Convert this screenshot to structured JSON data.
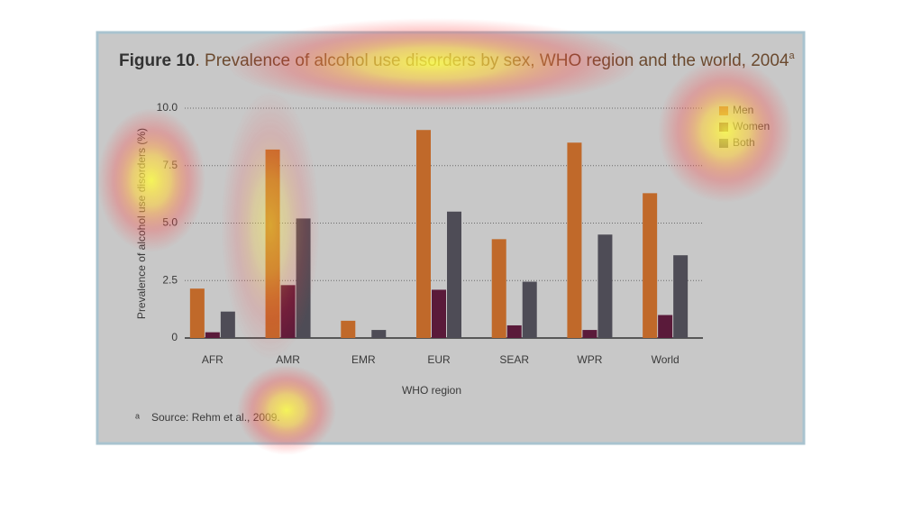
{
  "chart_data": {
    "type": "bar",
    "title_label": "Figure 10",
    "title": ". Prevalence of alcohol use disorders by sex, WHO region and the world, 2004",
    "title_superscript": "a",
    "x_label": "WHO region",
    "y_label": "Prevalence of alcohol use disorders (%)",
    "footnote_marker": "a",
    "footnote": "Source: Rehm et al., 2009.",
    "categories": [
      "AFR",
      "AMR",
      "EMR",
      "EUR",
      "SEAR",
      "WPR",
      "World"
    ],
    "series": [
      {
        "name": "Men",
        "color": "#c0692a",
        "values": [
          2.15,
          8.2,
          0.75,
          9.05,
          4.3,
          8.5,
          6.3
        ]
      },
      {
        "name": "Women",
        "color": "#5a1a3a",
        "values": [
          0.25,
          2.3,
          0,
          2.1,
          0.55,
          0.35,
          1.0
        ]
      },
      {
        "name": "Both",
        "color": "#4e4c56",
        "values": [
          1.15,
          5.2,
          0.35,
          5.5,
          2.45,
          4.5,
          3.6
        ]
      }
    ],
    "ylim": [
      0,
      10
    ],
    "yticks": [
      0,
      2.5,
      {
        "value": 5,
        "label": "5.0"
      },
      7.5,
      {
        "value": 10,
        "label": "10.0"
      }
    ],
    "grid": true,
    "legend": "top-right"
  }
}
